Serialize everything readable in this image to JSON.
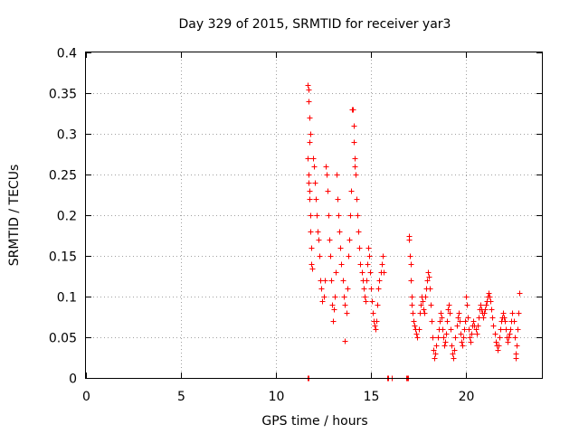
{
  "chart_data": {
    "type": "scatter",
    "title": "Day 329 of 2015, SRMTID for receiver yar3",
    "xlabel": "GPS time / hours",
    "ylabel": "SRMTID / TECUs",
    "xlim": [
      0,
      24
    ],
    "ylim": [
      0,
      0.4
    ],
    "xticks": [
      0,
      5,
      10,
      15,
      20
    ],
    "yticks": [
      0,
      0.05,
      0.1,
      0.15,
      0.2,
      0.25,
      0.3,
      0.35,
      0.4
    ],
    "xtick_labels": [
      "0",
      "5",
      "10",
      "15",
      "20"
    ],
    "ytick_labels": [
      "0",
      "0.05",
      "0.1",
      "0.15",
      "0.2",
      "0.25",
      "0.3",
      "0.35",
      "0.4"
    ],
    "grid": true,
    "marker": "+",
    "color": "#ff0000",
    "series": [
      {
        "name": "SRMTID",
        "points": [
          [
            11.65,
            0
          ],
          [
            11.7,
            0
          ],
          [
            15.85,
            0
          ],
          [
            15.9,
            0
          ],
          [
            16.1,
            0
          ],
          [
            16.85,
            0
          ],
          [
            16.9,
            0
          ],
          [
            16.95,
            0
          ],
          [
            11.65,
            0.36
          ],
          [
            11.7,
            0.355
          ],
          [
            11.72,
            0.34
          ],
          [
            11.75,
            0.32
          ],
          [
            11.8,
            0.3
          ],
          [
            11.78,
            0.29
          ],
          [
            11.68,
            0.27
          ],
          [
            11.7,
            0.25
          ],
          [
            11.72,
            0.24
          ],
          [
            11.74,
            0.23
          ],
          [
            11.76,
            0.22
          ],
          [
            11.8,
            0.2
          ],
          [
            11.82,
            0.18
          ],
          [
            11.85,
            0.16
          ],
          [
            11.88,
            0.14
          ],
          [
            11.9,
            0.135
          ],
          [
            11.95,
            0.27
          ],
          [
            12.0,
            0.26
          ],
          [
            12.05,
            0.24
          ],
          [
            12.1,
            0.22
          ],
          [
            12.15,
            0.2
          ],
          [
            12.2,
            0.18
          ],
          [
            12.25,
            0.17
          ],
          [
            12.3,
            0.15
          ],
          [
            12.35,
            0.12
          ],
          [
            12.4,
            0.11
          ],
          [
            12.45,
            0.095
          ],
          [
            12.5,
            0.1
          ],
          [
            12.55,
            0.12
          ],
          [
            12.6,
            0.26
          ],
          [
            12.65,
            0.25
          ],
          [
            12.7,
            0.23
          ],
          [
            12.75,
            0.2
          ],
          [
            12.8,
            0.17
          ],
          [
            12.85,
            0.15
          ],
          [
            12.9,
            0.12
          ],
          [
            12.95,
            0.09
          ],
          [
            13.0,
            0.07
          ],
          [
            13.05,
            0.085
          ],
          [
            13.1,
            0.1
          ],
          [
            13.15,
            0.13
          ],
          [
            13.2,
            0.25
          ],
          [
            13.25,
            0.22
          ],
          [
            13.3,
            0.2
          ],
          [
            13.35,
            0.18
          ],
          [
            13.4,
            0.16
          ],
          [
            13.45,
            0.14
          ],
          [
            13.5,
            0.12
          ],
          [
            13.55,
            0.1
          ],
          [
            13.6,
            0.09
          ],
          [
            13.62,
            0.046
          ],
          [
            13.7,
            0.08
          ],
          [
            13.75,
            0.11
          ],
          [
            13.8,
            0.15
          ],
          [
            13.85,
            0.17
          ],
          [
            13.9,
            0.2
          ],
          [
            13.95,
            0.23
          ],
          [
            14.0,
            0.33
          ],
          [
            14.05,
            0.33
          ],
          [
            14.08,
            0.31
          ],
          [
            14.1,
            0.29
          ],
          [
            14.12,
            0.27
          ],
          [
            14.15,
            0.26
          ],
          [
            14.2,
            0.25
          ],
          [
            14.25,
            0.22
          ],
          [
            14.3,
            0.2
          ],
          [
            14.35,
            0.18
          ],
          [
            14.4,
            0.16
          ],
          [
            14.45,
            0.14
          ],
          [
            14.5,
            0.13
          ],
          [
            14.55,
            0.12
          ],
          [
            14.6,
            0.11
          ],
          [
            14.65,
            0.1
          ],
          [
            14.7,
            0.095
          ],
          [
            14.75,
            0.12
          ],
          [
            14.8,
            0.14
          ],
          [
            14.85,
            0.16
          ],
          [
            14.9,
            0.15
          ],
          [
            14.95,
            0.13
          ],
          [
            15.0,
            0.11
          ],
          [
            15.05,
            0.095
          ],
          [
            15.1,
            0.08
          ],
          [
            15.15,
            0.07
          ],
          [
            15.2,
            0.065
          ],
          [
            15.25,
            0.06
          ],
          [
            15.3,
            0.07
          ],
          [
            15.35,
            0.09
          ],
          [
            15.4,
            0.11
          ],
          [
            15.45,
            0.12
          ],
          [
            15.5,
            0.13
          ],
          [
            15.55,
            0.14
          ],
          [
            15.6,
            0.15
          ],
          [
            15.65,
            0.13
          ],
          [
            17.0,
            0.175
          ],
          [
            17.02,
            0.17
          ],
          [
            17.05,
            0.15
          ],
          [
            17.08,
            0.14
          ],
          [
            17.1,
            0.12
          ],
          [
            17.12,
            0.1
          ],
          [
            17.15,
            0.09
          ],
          [
            17.2,
            0.08
          ],
          [
            17.25,
            0.07
          ],
          [
            17.3,
            0.065
          ],
          [
            17.35,
            0.06
          ],
          [
            17.4,
            0.055
          ],
          [
            17.45,
            0.05
          ],
          [
            17.5,
            0.06
          ],
          [
            17.55,
            0.08
          ],
          [
            17.6,
            0.09
          ],
          [
            17.65,
            0.1
          ],
          [
            17.7,
            0.095
          ],
          [
            17.75,
            0.085
          ],
          [
            17.8,
            0.08
          ],
          [
            17.85,
            0.1
          ],
          [
            17.9,
            0.11
          ],
          [
            17.95,
            0.12
          ],
          [
            18.0,
            0.13
          ],
          [
            18.05,
            0.125
          ],
          [
            18.1,
            0.11
          ],
          [
            18.15,
            0.09
          ],
          [
            18.2,
            0.07
          ],
          [
            18.25,
            0.05
          ],
          [
            18.3,
            0.035
          ],
          [
            18.35,
            0.025
          ],
          [
            18.4,
            0.03
          ],
          [
            18.45,
            0.04
          ],
          [
            18.5,
            0.05
          ],
          [
            18.55,
            0.06
          ],
          [
            18.6,
            0.07
          ],
          [
            18.65,
            0.08
          ],
          [
            18.7,
            0.075
          ],
          [
            18.75,
            0.06
          ],
          [
            18.8,
            0.05
          ],
          [
            18.85,
            0.04
          ],
          [
            18.9,
            0.045
          ],
          [
            18.95,
            0.055
          ],
          [
            19.0,
            0.07
          ],
          [
            19.05,
            0.085
          ],
          [
            19.1,
            0.09
          ],
          [
            19.15,
            0.08
          ],
          [
            19.2,
            0.06
          ],
          [
            19.25,
            0.04
          ],
          [
            19.3,
            0.03
          ],
          [
            19.35,
            0.025
          ],
          [
            19.4,
            0.035
          ],
          [
            19.45,
            0.05
          ],
          [
            19.5,
            0.065
          ],
          [
            19.55,
            0.075
          ],
          [
            19.6,
            0.08
          ],
          [
            19.65,
            0.07
          ],
          [
            19.7,
            0.055
          ],
          [
            19.75,
            0.045
          ],
          [
            19.8,
            0.04
          ],
          [
            19.85,
            0.05
          ],
          [
            19.9,
            0.06
          ],
          [
            19.95,
            0.07
          ],
          [
            20.0,
            0.1
          ],
          [
            20.05,
            0.09
          ],
          [
            20.1,
            0.075
          ],
          [
            20.15,
            0.06
          ],
          [
            20.2,
            0.05
          ],
          [
            20.25,
            0.045
          ],
          [
            20.3,
            0.055
          ],
          [
            20.35,
            0.065
          ],
          [
            20.4,
            0.07
          ],
          [
            20.45,
            0.065
          ],
          [
            20.5,
            0.06
          ],
          [
            20.55,
            0.055
          ],
          [
            20.6,
            0.065
          ],
          [
            20.65,
            0.075
          ],
          [
            20.7,
            0.085
          ],
          [
            20.75,
            0.09
          ],
          [
            20.8,
            0.085
          ],
          [
            20.85,
            0.08
          ],
          [
            20.9,
            0.075
          ],
          [
            20.95,
            0.08
          ],
          [
            21.0,
            0.085
          ],
          [
            21.05,
            0.09
          ],
          [
            21.1,
            0.095
          ],
          [
            21.15,
            0.1
          ],
          [
            21.2,
            0.105
          ],
          [
            21.25,
            0.1
          ],
          [
            21.3,
            0.095
          ],
          [
            21.35,
            0.085
          ],
          [
            21.4,
            0.075
          ],
          [
            21.45,
            0.065
          ],
          [
            21.5,
            0.055
          ],
          [
            21.55,
            0.045
          ],
          [
            21.6,
            0.04
          ],
          [
            21.65,
            0.035
          ],
          [
            21.7,
            0.04
          ],
          [
            21.75,
            0.05
          ],
          [
            21.8,
            0.06
          ],
          [
            21.85,
            0.07
          ],
          [
            21.9,
            0.075
          ],
          [
            21.95,
            0.08
          ],
          [
            22.0,
            0.075
          ],
          [
            22.05,
            0.07
          ],
          [
            22.1,
            0.06
          ],
          [
            22.15,
            0.05
          ],
          [
            22.2,
            0.045
          ],
          [
            22.25,
            0.05
          ],
          [
            22.3,
            0.055
          ],
          [
            22.35,
            0.06
          ],
          [
            22.4,
            0.07
          ],
          [
            22.45,
            0.08
          ],
          [
            22.5,
            0.07
          ],
          [
            22.55,
            0.05
          ],
          [
            22.6,
            0.03
          ],
          [
            22.62,
            0.025
          ],
          [
            22.65,
            0.04
          ],
          [
            22.7,
            0.06
          ],
          [
            22.75,
            0.08
          ],
          [
            22.8,
            0.105
          ]
        ]
      }
    ]
  }
}
